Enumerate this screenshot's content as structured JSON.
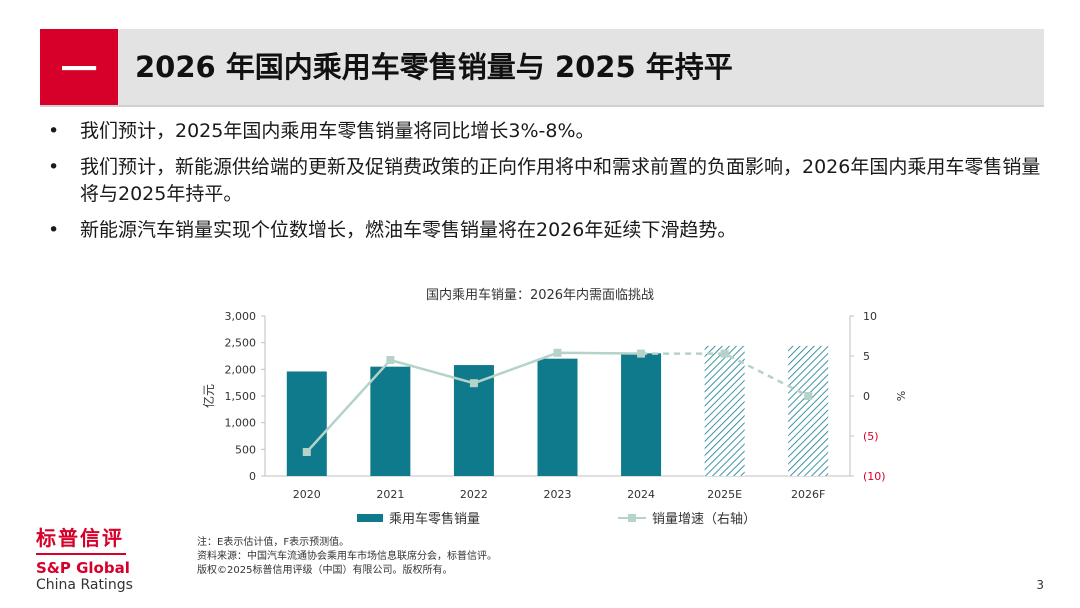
{
  "header": {
    "badge": "一",
    "title": "2026 年国内乘用车零售销量与 2025 年持平"
  },
  "bullets": [
    "我们预计，2025年国内乘用车零售销量将同比增长3%-8%。",
    "我们预计，新能源供给端的更新及促销费政策的正向作用将中和需求前置的负面影响，2026年国内乘用车零售销量将与2025年持平。",
    "新能源汽车销量实现个位数增长，燃油车零售销量将在2026年延续下滑趋势。"
  ],
  "bullet_symbol": "•",
  "chart_data": {
    "type": "bar",
    "title": "国内乘用车销量：2026年内需面临挑战",
    "categories": [
      "2020",
      "2021",
      "2022",
      "2023",
      "2024",
      "2025E",
      "2026F"
    ],
    "series": [
      {
        "name": "乘用车零售销量",
        "type": "bar",
        "axis": "left",
        "values": [
          1960,
          2050,
          2080,
          2200,
          2300,
          2440,
          2440
        ],
        "forecast_from_index": 5
      },
      {
        "name": "销量增速（右轴）",
        "type": "line",
        "axis": "right",
        "values": [
          -7,
          4.5,
          1.6,
          5.4,
          5.3,
          5.3,
          0
        ],
        "forecast_from_index": 5
      }
    ],
    "ylabel": "亿元",
    "ylabel_right": "%",
    "ylim": [
      0,
      3000
    ],
    "yticks": [
      0,
      500,
      1000,
      1500,
      2000,
      2500,
      3000
    ],
    "ytick_labels": [
      "0",
      "500",
      "1,000",
      "1,500",
      "2,000",
      "2,500",
      "3,000"
    ],
    "ylim_right": [
      -10,
      10
    ],
    "yticks_right": [
      -10,
      -5,
      0,
      5,
      10
    ],
    "ytick_labels_right": [
      "(10)",
      "(5)",
      "0",
      "5",
      "10"
    ],
    "grid": false,
    "legend_position": "bottom"
  },
  "colors": {
    "brand_red": "#d6002a",
    "bar": "#0e7a8c",
    "line": "#b5d3c8",
    "negative_tick": "#d6002a"
  },
  "footer": {
    "notes": [
      "注：E表示估计值，F表示预测值。",
      "资料来源：中国汽车流通协会乘用车市场信息联席分会，标普信评。",
      "版权©2025标普信用评级（中国）有限公司。版权所有。"
    ],
    "logo_cn": "标普信评",
    "logo_en1": "S&P Global",
    "logo_en2": "China Ratings",
    "page_number": "3"
  }
}
